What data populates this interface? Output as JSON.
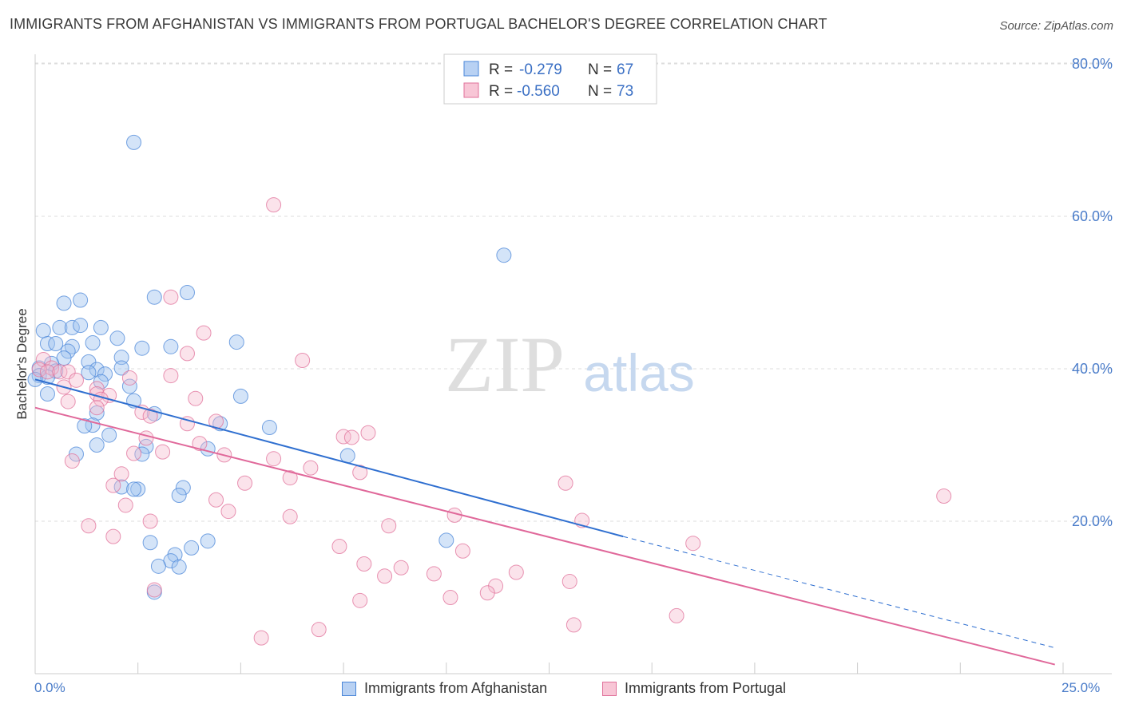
{
  "title": "IMMIGRANTS FROM AFGHANISTAN VS IMMIGRANTS FROM PORTUGAL BACHELOR'S DEGREE CORRELATION CHART",
  "source": "Source: ZipAtlas.com",
  "watermark": {
    "zip": "ZIP",
    "atlas": "atlas"
  },
  "colors": {
    "afghanistan": "#4a86d8",
    "portugal": "#e0709a",
    "axis_label": "#4a7cc9"
  },
  "chart_data": {
    "type": "scatter",
    "title": "IMMIGRANTS FROM AFGHANISTAN VS IMMIGRANTS FROM PORTUGAL BACHELOR'S DEGREE CORRELATION CHART",
    "xlabel": "",
    "ylabel": "Bachelor's Degree",
    "xlim": [
      0,
      25
    ],
    "ylim": [
      0,
      80
    ],
    "x_tick_labels": [
      "0.0%",
      "25.0%"
    ],
    "y_ticks": [
      20,
      40,
      60,
      80
    ],
    "y_tick_labels": [
      "20.0%",
      "40.0%",
      "60.0%",
      "80.0%"
    ],
    "grid": true,
    "legend_stats": [
      {
        "r_label": "R =",
        "r": "-0.279",
        "n_label": "N =",
        "n": "67"
      },
      {
        "r_label": "R =",
        "r": "-0.560",
        "n_label": "N =",
        "n": "73"
      }
    ],
    "series": [
      {
        "name": "Immigrants from Afghanistan",
        "color": "#4a86d8",
        "trend": {
          "x0": 0,
          "y0": 38.6,
          "x1": 14.3,
          "y1": 18.0,
          "dash_x1": 24.8,
          "dash_y1": 3.4
        },
        "points": [
          [
            2.4,
            69.7
          ],
          [
            11.4,
            54.9
          ],
          [
            3.7,
            50.0
          ],
          [
            2.9,
            49.4
          ],
          [
            1.1,
            49.0
          ],
          [
            0.7,
            48.6
          ],
          [
            0.2,
            45.0
          ],
          [
            0.6,
            45.4
          ],
          [
            0.9,
            45.4
          ],
          [
            1.1,
            45.7
          ],
          [
            1.6,
            45.4
          ],
          [
            2.0,
            44.0
          ],
          [
            1.4,
            43.4
          ],
          [
            0.3,
            43.3
          ],
          [
            0.5,
            43.3
          ],
          [
            0.9,
            42.9
          ],
          [
            0.8,
            42.3
          ],
          [
            2.6,
            42.7
          ],
          [
            3.3,
            42.9
          ],
          [
            4.9,
            43.5
          ],
          [
            2.1,
            41.5
          ],
          [
            0.7,
            41.4
          ],
          [
            1.3,
            40.9
          ],
          [
            0.4,
            40.7
          ],
          [
            0.1,
            40.1
          ],
          [
            2.1,
            40.1
          ],
          [
            1.5,
            39.9
          ],
          [
            0.5,
            39.7
          ],
          [
            1.7,
            39.3
          ],
          [
            1.3,
            39.5
          ],
          [
            0.1,
            39.1
          ],
          [
            0.3,
            38.9
          ],
          [
            0.0,
            38.6
          ],
          [
            1.6,
            38.3
          ],
          [
            2.3,
            37.7
          ],
          [
            0.3,
            36.7
          ],
          [
            5.0,
            36.4
          ],
          [
            2.4,
            35.8
          ],
          [
            2.9,
            34.1
          ],
          [
            1.5,
            34.2
          ],
          [
            1.4,
            32.6
          ],
          [
            1.2,
            32.5
          ],
          [
            4.5,
            32.8
          ],
          [
            5.7,
            32.3
          ],
          [
            1.8,
            31.3
          ],
          [
            1.5,
            30.0
          ],
          [
            2.7,
            29.8
          ],
          [
            4.2,
            29.5
          ],
          [
            7.6,
            28.6
          ],
          [
            1.0,
            28.8
          ],
          [
            2.6,
            28.8
          ],
          [
            2.1,
            24.5
          ],
          [
            2.5,
            24.2
          ],
          [
            2.4,
            24.2
          ],
          [
            3.6,
            24.4
          ],
          [
            3.5,
            23.4
          ],
          [
            10.0,
            17.5
          ],
          [
            2.8,
            17.2
          ],
          [
            4.2,
            17.4
          ],
          [
            3.8,
            16.5
          ],
          [
            3.4,
            15.6
          ],
          [
            3.3,
            14.8
          ],
          [
            3.0,
            14.1
          ],
          [
            3.5,
            14.0
          ],
          [
            2.9,
            10.7
          ]
        ]
      },
      {
        "name": "Immigrants from Portugal",
        "color": "#e0709a",
        "trend": {
          "x0": 0,
          "y0": 34.9,
          "x1": 24.8,
          "y1": 1.2
        },
        "points": [
          [
            5.8,
            61.5
          ],
          [
            3.3,
            49.4
          ],
          [
            4.1,
            44.7
          ],
          [
            6.5,
            41.1
          ],
          [
            3.7,
            42.0
          ],
          [
            0.2,
            41.2
          ],
          [
            0.4,
            40.1
          ],
          [
            0.1,
            39.9
          ],
          [
            0.3,
            39.6
          ],
          [
            0.6,
            39.6
          ],
          [
            0.8,
            39.6
          ],
          [
            2.3,
            38.8
          ],
          [
            3.3,
            39.1
          ],
          [
            1.0,
            38.5
          ],
          [
            0.7,
            37.6
          ],
          [
            1.5,
            37.4
          ],
          [
            1.5,
            36.7
          ],
          [
            1.8,
            36.5
          ],
          [
            1.6,
            36.0
          ],
          [
            3.9,
            36.1
          ],
          [
            0.8,
            35.7
          ],
          [
            1.5,
            34.9
          ],
          [
            2.6,
            34.3
          ],
          [
            2.8,
            33.8
          ],
          [
            4.4,
            33.1
          ],
          [
            3.7,
            32.8
          ],
          [
            8.1,
            31.6
          ],
          [
            7.5,
            31.1
          ],
          [
            7.7,
            31.0
          ],
          [
            2.7,
            30.9
          ],
          [
            4.0,
            30.2
          ],
          [
            3.1,
            29.1
          ],
          [
            2.4,
            28.9
          ],
          [
            4.6,
            28.7
          ],
          [
            5.8,
            28.2
          ],
          [
            0.9,
            27.9
          ],
          [
            6.7,
            27.0
          ],
          [
            6.2,
            25.7
          ],
          [
            2.1,
            26.2
          ],
          [
            7.9,
            26.4
          ],
          [
            1.9,
            24.7
          ],
          [
            5.1,
            25.0
          ],
          [
            12.9,
            25.0
          ],
          [
            22.1,
            23.3
          ],
          [
            4.4,
            22.8
          ],
          [
            2.2,
            22.1
          ],
          [
            4.7,
            21.3
          ],
          [
            10.2,
            20.8
          ],
          [
            6.2,
            20.6
          ],
          [
            13.3,
            20.1
          ],
          [
            2.8,
            20.0
          ],
          [
            1.3,
            19.4
          ],
          [
            8.6,
            19.4
          ],
          [
            1.9,
            18.0
          ],
          [
            16.0,
            17.1
          ],
          [
            7.4,
            16.7
          ],
          [
            10.4,
            16.1
          ],
          [
            8.0,
            14.4
          ],
          [
            8.9,
            13.9
          ],
          [
            9.7,
            13.1
          ],
          [
            8.5,
            12.8
          ],
          [
            11.7,
            13.3
          ],
          [
            13.0,
            12.1
          ],
          [
            2.9,
            11.0
          ],
          [
            11.2,
            11.5
          ],
          [
            11.0,
            10.6
          ],
          [
            10.1,
            10.0
          ],
          [
            7.9,
            9.6
          ],
          [
            15.6,
            7.6
          ],
          [
            13.1,
            6.4
          ],
          [
            6.9,
            5.8
          ],
          [
            5.5,
            4.7
          ]
        ]
      }
    ]
  }
}
